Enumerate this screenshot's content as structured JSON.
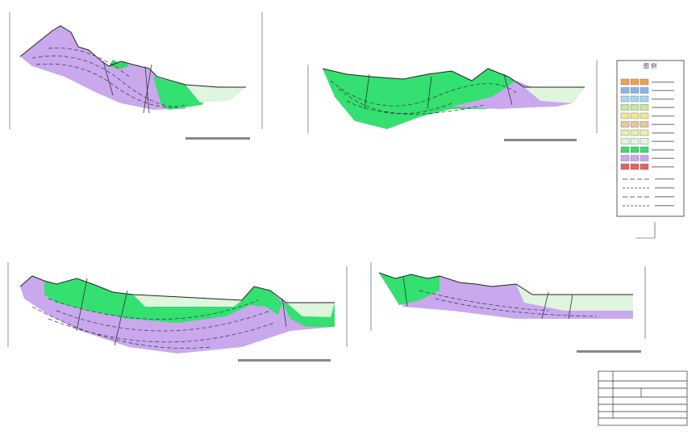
{
  "legend": {
    "title": "图 例"
  }
}
